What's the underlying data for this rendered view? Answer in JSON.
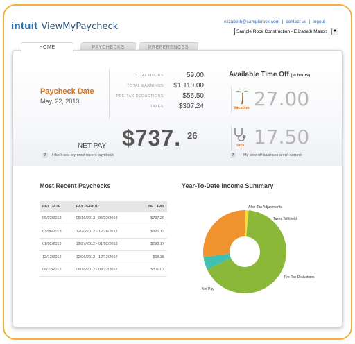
{
  "brand": {
    "company": "intuit",
    "product": "ViewMyPaycheck"
  },
  "header": {
    "email": "elizabeth@samplerock.com",
    "contact": "contact us",
    "logout": "logout",
    "employer_select": "Sample Rock Construction - Elizabeth Mason"
  },
  "tabs": [
    {
      "label": "HOME"
    },
    {
      "label": "PAYCHECKS"
    },
    {
      "label": "PREFERENCES"
    }
  ],
  "paycheck": {
    "date_label": "Paycheck Date",
    "date_value": "May. 22, 2013",
    "stats": [
      {
        "label": "TOTAL HOURS",
        "value": "59.00"
      },
      {
        "label": "TOTAL EARNINGS",
        "value": "$1,110.00"
      },
      {
        "label": "PRE-TAX DEDUCTIONS",
        "value": "$55.50"
      },
      {
        "label": "TAXES",
        "value": "$307.24"
      }
    ],
    "net_pay_label": "NET PAY",
    "net_pay_dollars": "$737.",
    "net_pay_cents": "26",
    "help_text": "I don't see my most recent paycheck"
  },
  "time_off": {
    "title": "Available Time Off",
    "unit": "(in hours)",
    "vacation_label": "Vacation",
    "vacation_value": "27.00",
    "sick_label": "Sick",
    "sick_value": "17.50",
    "help_text": "My time off balances aren't correct"
  },
  "recent": {
    "title": "Most Recent Paychecks",
    "columns": [
      "PAY DATE",
      "PAY PERIOD",
      "NET PAY"
    ],
    "rows": [
      [
        "05/22/2013",
        "05/16/2013 - 05/22/2013",
        "$737.26"
      ],
      [
        "03/06/2013",
        "12/20/2012 - 12/26/2012",
        "$325.12"
      ],
      [
        "01/02/2013",
        "12/27/2012 - 01/02/2013",
        "$293.17"
      ],
      [
        "12/12/2012",
        "12/06/2012 - 12/12/2012",
        "$68.35"
      ],
      [
        "08/22/2012",
        "08/16/2012 - 08/22/2012",
        "$311.03"
      ]
    ]
  },
  "ytd": {
    "title": "Year-To-Date Income Summary"
  },
  "chart_data": {
    "type": "pie",
    "title": "Year-To-Date Income Summary",
    "slices": [
      {
        "label": "Net Pay",
        "value": 0.665,
        "color": "#8cb83a"
      },
      {
        "label": "Pre-Tax Deductions",
        "value": 0.05,
        "color": "#41c0b0"
      },
      {
        "label": "Taxes Withheld",
        "value": 0.27,
        "color": "#f0922e"
      },
      {
        "label": "After-Tax Adjustments",
        "value": 0.015,
        "color": "#f5dc3c"
      }
    ],
    "style": "donut"
  },
  "colors": {
    "accent": "#d9731a",
    "link": "#2d66b3",
    "frame": "#f0b23c"
  }
}
